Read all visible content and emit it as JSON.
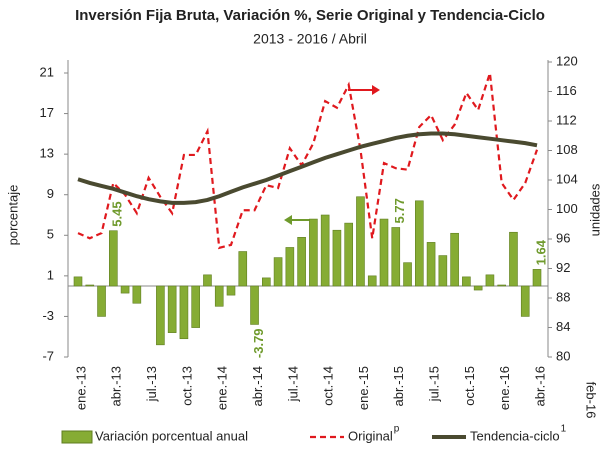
{
  "chart_data": {
    "type": "bar-line",
    "title": "Inversión Fija Bruta, Variación %, Serie Original y Tendencia-Ciclo",
    "subtitle": "2013 - 2016 / Abril",
    "ylabel": "porcentaje",
    "y2label": "unidades",
    "annotation": "feb-16",
    "categories": [
      "ene.-13",
      null,
      null,
      "abr.-13",
      null,
      null,
      "jul.-13",
      null,
      null,
      "oct.-13",
      null,
      null,
      "ene.-14",
      null,
      null,
      "abr.-14",
      null,
      null,
      "jul.-14",
      null,
      null,
      "oct.-14",
      null,
      null,
      "ene.-15",
      null,
      null,
      "abr.-15",
      null,
      null,
      "jul.-15",
      null,
      null,
      "oct.-15",
      null,
      null,
      "ene.-16",
      null,
      null,
      "abr.-16"
    ],
    "ylim": [
      -7,
      21
    ],
    "yticks": [
      21,
      17,
      13,
      9,
      5,
      1,
      -3,
      -7
    ],
    "y2lim": [
      80,
      120
    ],
    "y2ticks": [
      120,
      116,
      112,
      108,
      104,
      100,
      96,
      92,
      88,
      84,
      80
    ],
    "series": [
      {
        "name": "Variación porcentual anual",
        "color": "#86ac34",
        "type": "bar",
        "values": [
          0.9,
          0.1,
          -3.0,
          5.45,
          -0.7,
          -1.7,
          0.0,
          -5.8,
          -4.6,
          -5.2,
          -4.1,
          1.1,
          -2.0,
          -0.9,
          3.4,
          -3.79,
          0.8,
          2.8,
          3.8,
          4.8,
          6.6,
          7.0,
          5.5,
          6.2,
          8.8,
          1.0,
          6.6,
          5.77,
          2.3,
          8.4,
          4.3,
          3.0,
          5.2,
          0.9,
          -0.4,
          1.1,
          0.1,
          5.3,
          -3.0,
          1.64
        ],
        "value_labels": [
          null,
          null,
          null,
          5.45,
          null,
          null,
          null,
          null,
          null,
          null,
          null,
          null,
          null,
          null,
          null,
          -3.79,
          null,
          null,
          null,
          null,
          null,
          null,
          null,
          null,
          null,
          null,
          null,
          5.77,
          null,
          null,
          null,
          null,
          null,
          null,
          null,
          null,
          null,
          null,
          null,
          1.64
        ]
      },
      {
        "name": "Original",
        "superscript": "p",
        "color": "#e0191e",
        "type": "line",
        "dashed": true,
        "axis": "y2",
        "values": [
          96.8,
          96.1,
          96.8,
          103.6,
          102.0,
          99.5,
          104.3,
          101.7,
          99.5,
          107.4,
          107.4,
          110.6,
          94.8,
          95.2,
          99.9,
          99.9,
          103.3,
          102.9,
          108.3,
          106.0,
          109.0,
          114.7,
          113.8,
          116.9,
          108.1,
          96.1,
          106.3,
          105.6,
          105.4,
          111.2,
          112.8,
          109.4,
          111.5,
          115.8,
          113.5,
          118.5,
          103.6,
          101.3,
          103.6,
          108.1
        ]
      },
      {
        "name": "Tendencia-ciclo",
        "superscript": "1",
        "color": "#4a4a30",
        "type": "line",
        "axis": "y2",
        "values": [
          104.1,
          103.6,
          103.2,
          102.8,
          102.3,
          101.8,
          101.4,
          101.1,
          100.9,
          100.9,
          101.0,
          101.3,
          101.8,
          102.4,
          103.0,
          103.5,
          104.0,
          104.6,
          105.2,
          105.8,
          106.4,
          107.0,
          107.5,
          108.0,
          108.5,
          108.9,
          109.3,
          109.7,
          110.0,
          110.2,
          110.3,
          110.3,
          110.2,
          110.0,
          109.8,
          109.6,
          109.4,
          109.2,
          109.0,
          108.7
        ]
      }
    ]
  }
}
